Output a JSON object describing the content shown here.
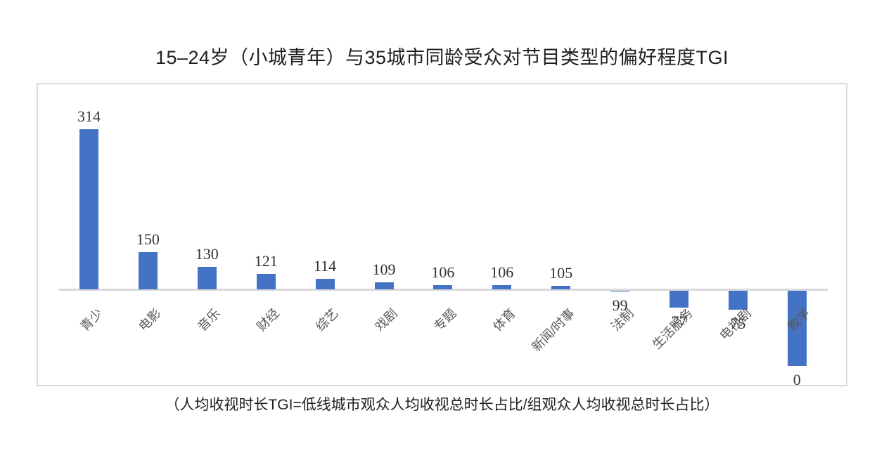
{
  "title": "15–24岁（小城青年）与35城市同龄受众对节目类型的偏好程度TGI",
  "caption": "（人均收视时长TGI=低线城市观众人均收视总时长占比/组观众人均收视总时长占比）",
  "chart_data": {
    "type": "bar",
    "title": "15–24岁（小城青年）与35城市同龄受众对节目类型的偏好程度TGI",
    "categories": [
      "青少",
      "电影",
      "音乐",
      "财经",
      "综艺",
      "戏剧",
      "专题",
      "体育",
      "新闻/时事",
      "法制",
      "生活服务",
      "电视剧",
      "教学"
    ],
    "values": [
      314,
      150,
      130,
      121,
      114,
      109,
      106,
      106,
      105,
      99,
      77,
      75,
      0
    ],
    "baseline": 100,
    "data_labels": "outside-end",
    "grid": false,
    "legend": "none",
    "xlabel": "",
    "ylabel": "",
    "bar_color": "#4472C4",
    "axis_color": "#D9D9D9",
    "category_label_color": "#595959",
    "value_label_color": "#333333",
    "category_label_rotation_deg": -45
  }
}
